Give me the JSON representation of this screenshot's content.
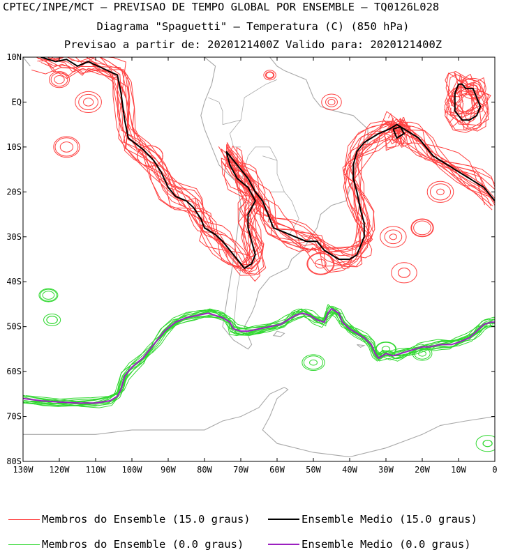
{
  "titles": {
    "line1": "CPTEC/INPE/MCT – PREVISAO DE TEMPO GLOBAL POR ENSEMBLE – TQ0126L028",
    "line2": "Diagrama \"Spaguetti\" – Temperatura (C) (850 hPa)",
    "line3": "Previsao a partir de: 2020121400Z  Valido para: 2020121400Z"
  },
  "colors": {
    "member_15": "#ff4040",
    "mean_15": "#000000",
    "member_0": "#30d830",
    "mean_0": "#9b20c0",
    "coast": "#a8a8a8"
  },
  "chart_data": {
    "type": "line",
    "xlim": [
      -130,
      0
    ],
    "ylim": [
      -80,
      10
    ],
    "x_ticks": [
      {
        "value": -130,
        "label": "130W"
      },
      {
        "value": -120,
        "label": "120W"
      },
      {
        "value": -110,
        "label": "110W"
      },
      {
        "value": -100,
        "label": "100W"
      },
      {
        "value": -90,
        "label": "90W"
      },
      {
        "value": -80,
        "label": "80W"
      },
      {
        "value": -70,
        "label": "70W"
      },
      {
        "value": -60,
        "label": "60W"
      },
      {
        "value": -50,
        "label": "50W"
      },
      {
        "value": -40,
        "label": "40W"
      },
      {
        "value": -30,
        "label": "30W"
      },
      {
        "value": -20,
        "label": "20W"
      },
      {
        "value": -10,
        "label": "10W"
      },
      {
        "value": 0,
        "label": "0"
      }
    ],
    "y_ticks": [
      {
        "value": 10,
        "label": "10N"
      },
      {
        "value": 0,
        "label": "EQ"
      },
      {
        "value": -10,
        "label": "10S"
      },
      {
        "value": -20,
        "label": "20S"
      },
      {
        "value": -30,
        "label": "30S"
      },
      {
        "value": -40,
        "label": "40S"
      },
      {
        "value": -50,
        "label": "50S"
      },
      {
        "value": -60,
        "label": "60S"
      },
      {
        "value": -70,
        "label": "70S"
      },
      {
        "value": -80,
        "label": "80S"
      }
    ],
    "series": [
      {
        "name": "Ensemble Medio (15.0 graus)",
        "color": "#000000",
        "segments": [
          [
            [
              -125,
              10
            ],
            [
              -121,
              9
            ],
            [
              -118,
              9.5
            ],
            [
              -115,
              8
            ],
            [
              -112,
              9
            ],
            [
              -108,
              7.5
            ],
            [
              -104,
              6
            ],
            [
              -103,
              2
            ],
            [
              -102,
              -4
            ],
            [
              -101,
              -8
            ],
            [
              -97,
              -10.5
            ],
            [
              -94,
              -13
            ],
            [
              -92,
              -15.5
            ],
            [
              -90,
              -19
            ],
            [
              -88,
              -21
            ],
            [
              -85,
              -22
            ],
            [
              -83,
              -23.5
            ],
            [
              -81,
              -26
            ],
            [
              -80,
              -28
            ],
            [
              -77,
              -29.5
            ],
            [
              -75,
              -31
            ],
            [
              -73,
              -33
            ],
            [
              -71,
              -35
            ],
            [
              -69,
              -37
            ],
            [
              -67,
              -36
            ],
            [
              -66,
              -34
            ],
            [
              -67,
              -31
            ],
            [
              -68,
              -28
            ],
            [
              -68,
              -25
            ],
            [
              -66,
              -22
            ],
            [
              -68,
              -19
            ],
            [
              -71,
              -17
            ],
            [
              -73,
              -14
            ],
            [
              -74,
              -11
            ],
            [
              -72,
              -13
            ],
            [
              -70,
              -15
            ],
            [
              -68,
              -17
            ],
            [
              -66,
              -20
            ],
            [
              -64,
              -22
            ],
            [
              -63,
              -24
            ],
            [
              -62,
              -26
            ],
            [
              -61,
              -28
            ],
            [
              -58,
              -29
            ],
            [
              -55,
              -30
            ],
            [
              -52,
              -31
            ],
            [
              -49,
              -31
            ],
            [
              -47,
              -33
            ],
            [
              -45,
              -34
            ],
            [
              -43,
              -35
            ],
            [
              -40,
              -35
            ],
            [
              -38,
              -34
            ],
            [
              -37,
              -32
            ],
            [
              -36,
              -30
            ],
            [
              -36,
              -27
            ],
            [
              -37,
              -24
            ],
            [
              -38,
              -20
            ],
            [
              -39,
              -17
            ],
            [
              -39,
              -14
            ],
            [
              -38,
              -11
            ],
            [
              -36,
              -9
            ],
            [
              -34,
              -8
            ],
            [
              -32,
              -7
            ],
            [
              -29,
              -6
            ],
            [
              -27,
              -5
            ],
            [
              -25,
              -6
            ],
            [
              -23,
              -7
            ],
            [
              -21,
              -8
            ],
            [
              -19,
              -10
            ],
            [
              -17,
              -12
            ],
            [
              -13,
              -14
            ],
            [
              -9,
              -16
            ],
            [
              -6,
              -17.5
            ],
            [
              -3,
              -19
            ],
            [
              0,
              -22
            ]
          ],
          [
            [
              -11,
              0
            ],
            [
              -11,
              2
            ],
            [
              -10,
              4
            ],
            [
              -9,
              4
            ],
            [
              -8,
              3
            ],
            [
              -6,
              3
            ],
            [
              -5,
              1
            ],
            [
              -4,
              -1
            ],
            [
              -5,
              -3
            ],
            [
              -7,
              -4
            ],
            [
              -9,
              -4
            ],
            [
              -11,
              -2
            ],
            [
              -11,
              0
            ]
          ],
          [
            [
              -28,
              -6
            ],
            [
              -26,
              -5.5
            ],
            [
              -25,
              -7
            ],
            [
              -27,
              -8
            ],
            [
              -28,
              -6
            ]
          ]
        ]
      },
      {
        "name": "Ensemble Medio (0.0 graus)",
        "color": "#9b20c0",
        "segments": [
          [
            [
              -130,
              -66
            ],
            [
              -125,
              -66.5
            ],
            [
              -120,
              -66.8
            ],
            [
              -115,
              -67
            ],
            [
              -110,
              -67
            ],
            [
              -106,
              -66.5
            ],
            [
              -104,
              -65.5
            ],
            [
              -103,
              -64
            ],
            [
              -102,
              -61
            ],
            [
              -100,
              -59
            ],
            [
              -97,
              -57
            ],
            [
              -95,
              -55
            ],
            [
              -93,
              -53
            ],
            [
              -91,
              -51
            ],
            [
              -88,
              -49
            ],
            [
              -85,
              -48
            ],
            [
              -82,
              -47.5
            ],
            [
              -79,
              -47
            ],
            [
              -77,
              -47.5
            ],
            [
              -75,
              -48
            ],
            [
              -73,
              -49
            ],
            [
              -72,
              -50.5
            ],
            [
              -70,
              -51
            ],
            [
              -68,
              -51
            ],
            [
              -65,
              -50.5
            ],
            [
              -62,
              -50
            ],
            [
              -59,
              -49.5
            ],
            [
              -57,
              -48.5
            ],
            [
              -55,
              -47.5
            ],
            [
              -53,
              -47
            ],
            [
              -51,
              -47.5
            ],
            [
              -49,
              -48.5
            ],
            [
              -47,
              -49
            ],
            [
              -46,
              -47
            ],
            [
              -45,
              -46
            ],
            [
              -43,
              -47
            ],
            [
              -42,
              -49
            ],
            [
              -40,
              -50.5
            ],
            [
              -38,
              -51.5
            ],
            [
              -36,
              -52.5
            ],
            [
              -34,
              -54
            ],
            [
              -33,
              -56
            ],
            [
              -32,
              -57
            ],
            [
              -30,
              -56
            ],
            [
              -28,
              -56.5
            ],
            [
              -26,
              -56
            ],
            [
              -24,
              -55.5
            ],
            [
              -22,
              -55
            ],
            [
              -20,
              -54.5
            ],
            [
              -18,
              -54.5
            ],
            [
              -15,
              -54
            ],
            [
              -12,
              -54
            ],
            [
              -10,
              -53.5
            ],
            [
              -7,
              -52.5
            ],
            [
              -5,
              -51
            ],
            [
              -3,
              -49.5
            ],
            [
              -1,
              -49
            ],
            [
              0,
              -49
            ]
          ]
        ]
      },
      {
        "name": "Membros do Ensemble (15.0 graus)",
        "color": "#ff4040"
      },
      {
        "name": "Membros do Ensemble (0.0 graus)",
        "color": "#30d830"
      }
    ],
    "grid": false
  },
  "legend": {
    "member_15_label": "Membros do Ensemble (15.0 graus)",
    "mean_15_label": "Ensemble Medio (15.0 graus)",
    "member_0_label": "Membros do Ensemble (0.0 graus)",
    "mean_0_label": "Ensemble Medio (0.0 graus)"
  }
}
